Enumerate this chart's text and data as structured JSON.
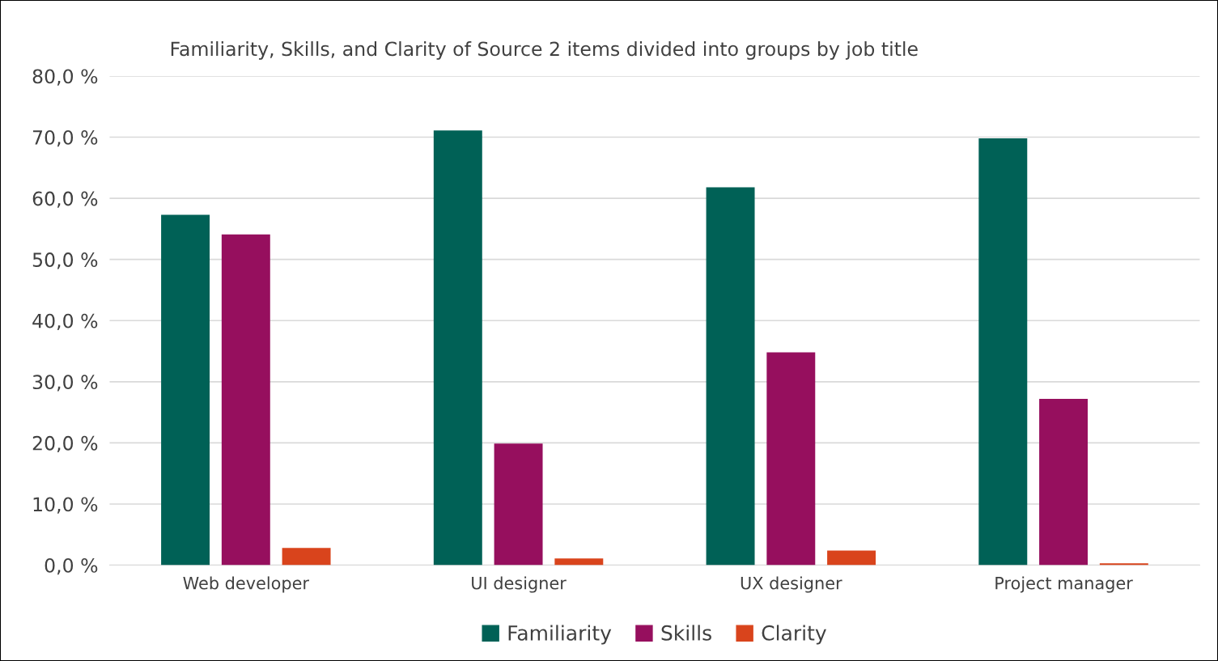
{
  "chart_data": {
    "type": "bar",
    "title": "Familiarity, Skills, and Clarity of Source 2 items divided into groups by job title",
    "categories": [
      "Web developer",
      "UI designer",
      "UX designer",
      "Project manager"
    ],
    "series": [
      {
        "name": "Familiarity",
        "color": "#006156",
        "values": [
          57.3,
          71.1,
          61.8,
          69.8
        ]
      },
      {
        "name": "Skills",
        "color": "#960f5e",
        "values": [
          54.1,
          19.9,
          34.8,
          27.2
        ]
      },
      {
        "name": "Clarity",
        "color": "#d9441c",
        "values": [
          2.8,
          1.1,
          2.4,
          0.3
        ]
      }
    ],
    "ylim": [
      0,
      80
    ],
    "yticks": [
      {
        "value": 0,
        "label": "0,0 %"
      },
      {
        "value": 10,
        "label": "10,0 %"
      },
      {
        "value": 20,
        "label": "20,0 %"
      },
      {
        "value": 30,
        "label": "30,0 %"
      },
      {
        "value": 40,
        "label": "40,0 %"
      },
      {
        "value": 50,
        "label": "50,0 %"
      },
      {
        "value": 60,
        "label": "60,0 %"
      },
      {
        "value": 70,
        "label": "70,0 %"
      },
      {
        "value": 80,
        "label": "80,0 %"
      }
    ],
    "grid": "y",
    "legend": "bottom"
  }
}
